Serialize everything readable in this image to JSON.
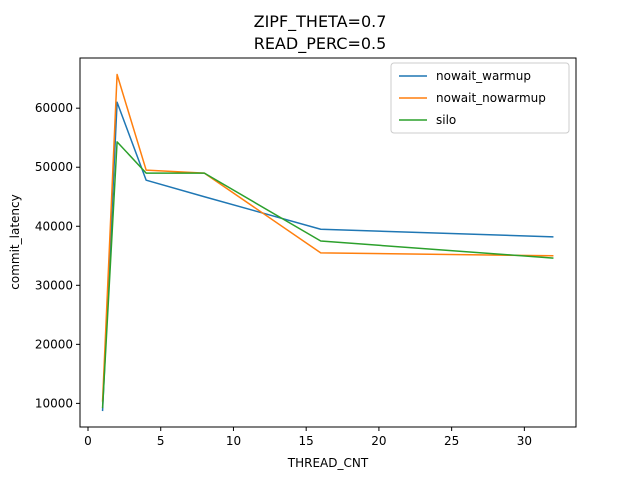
{
  "chart_data": {
    "type": "line",
    "title": [
      "ZIPF_THETA=0.7",
      "READ_PERC=0.5"
    ],
    "xlabel": "THREAD_CNT",
    "ylabel": "commit_latency",
    "xlim": [
      -0.55,
      33.55
    ],
    "ylim": [
      6000,
      68500
    ],
    "xticks": [
      0,
      5,
      10,
      15,
      20,
      25,
      30
    ],
    "yticks": [
      10000,
      20000,
      30000,
      40000,
      50000,
      60000
    ],
    "grid": false,
    "legend_position": "top-right",
    "x": [
      1,
      2,
      4,
      8,
      16,
      32
    ],
    "series": [
      {
        "name": "nowait_warmup",
        "color": "#1f77b4",
        "values": [
          8700,
          61000,
          47800,
          45000,
          39500,
          38200
        ]
      },
      {
        "name": "nowait_nowarmup",
        "color": "#ff7f0e",
        "values": [
          10300,
          65700,
          49500,
          49000,
          35500,
          35000
        ]
      },
      {
        "name": "silo",
        "color": "#2ca02c",
        "values": [
          9200,
          54300,
          49000,
          49000,
          37500,
          34600
        ]
      }
    ]
  }
}
